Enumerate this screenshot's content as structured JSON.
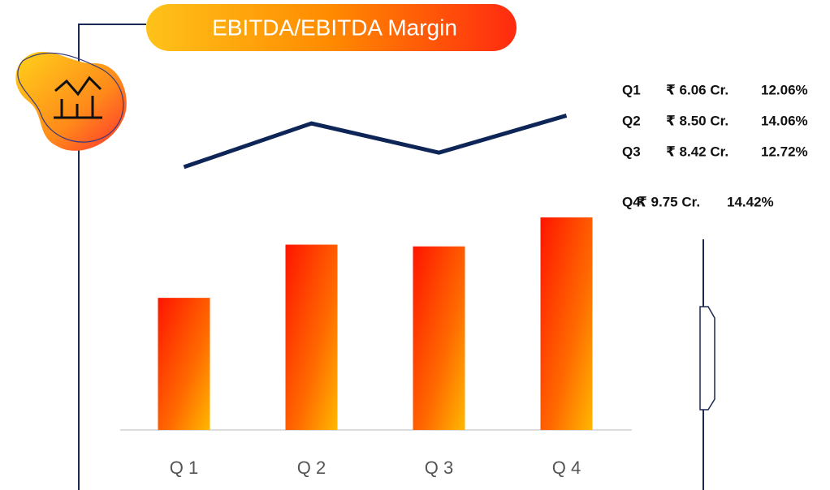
{
  "chart_data": {
    "type": "bar_line",
    "title": "EBITDA/EBITDA Margin",
    "categories": [
      "Q 1",
      "Q 2",
      "Q 3",
      "Q 4"
    ],
    "label_categories": [
      "Q1",
      "Q2",
      "Q3",
      "Q4"
    ],
    "series": [
      {
        "type": "bar",
        "color": "#ff2a00",
        "values": [
          6.06,
          8.5,
          8.42,
          9.75
        ],
        "value_labels": [
          "₹ 6.06 Cr.",
          "₹ 8.50 Cr.",
          "₹ 8.42 Cr.",
          "₹ 9.75 Cr."
        ]
      },
      {
        "type": "line",
        "axis": "y2",
        "color": "#0d2557",
        "values": [
          12.06,
          14.06,
          12.72,
          14.42
        ],
        "value_labels": [
          "12.06%",
          "14.06%",
          "12.72%",
          "14.42%"
        ]
      }
    ],
    "ylim": [
      0,
      16
    ],
    "y2lim": [
      0,
      16
    ]
  }
}
